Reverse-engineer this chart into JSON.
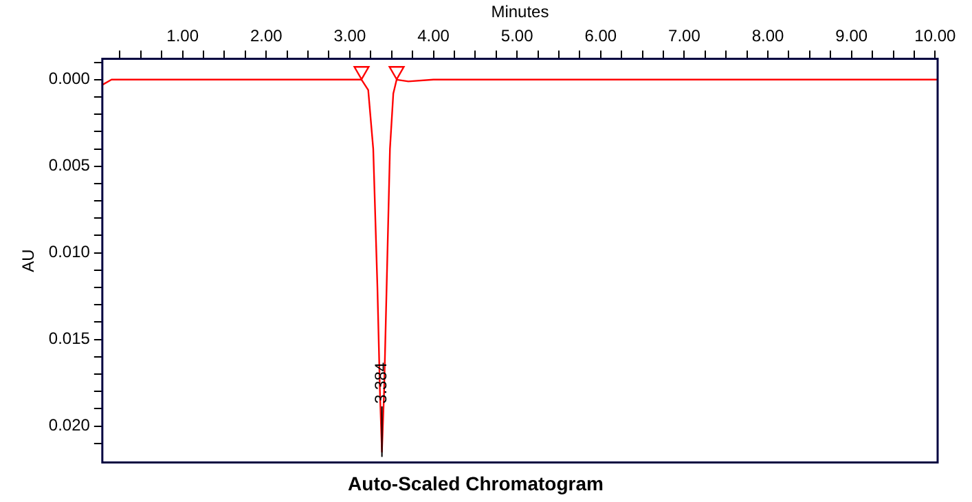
{
  "chart_data": {
    "type": "line",
    "title": "Auto-Scaled Chromatogram",
    "xlabel": "Minutes",
    "ylabel": "AU",
    "xlim": [
      0.04,
      10.03
    ],
    "ylim": [
      0.0221,
      -0.0012
    ],
    "xticks": [
      {
        "value": 0.25,
        "label": null
      },
      {
        "value": 0.5,
        "label": null
      },
      {
        "value": 0.75,
        "label": null
      },
      {
        "value": 1,
        "label": "1.00"
      },
      {
        "value": 1.25,
        "label": null
      },
      {
        "value": 1.5,
        "label": null
      },
      {
        "value": 1.75,
        "label": null
      },
      {
        "value": 2,
        "label": "2.00"
      },
      {
        "value": 2.25,
        "label": null
      },
      {
        "value": 2.5,
        "label": null
      },
      {
        "value": 2.75,
        "label": null
      },
      {
        "value": 3,
        "label": "3.00"
      },
      {
        "value": 3.25,
        "label": null
      },
      {
        "value": 3.5,
        "label": null
      },
      {
        "value": 3.75,
        "label": null
      },
      {
        "value": 4,
        "label": "4.00"
      },
      {
        "value": 4.25,
        "label": null
      },
      {
        "value": 4.5,
        "label": null
      },
      {
        "value": 4.75,
        "label": null
      },
      {
        "value": 5,
        "label": "5.00"
      },
      {
        "value": 5.25,
        "label": null
      },
      {
        "value": 5.5,
        "label": null
      },
      {
        "value": 5.75,
        "label": null
      },
      {
        "value": 6,
        "label": "6.00"
      },
      {
        "value": 6.25,
        "label": null
      },
      {
        "value": 6.5,
        "label": null
      },
      {
        "value": 6.75,
        "label": null
      },
      {
        "value": 7,
        "label": "7.00"
      },
      {
        "value": 7.25,
        "label": null
      },
      {
        "value": 7.5,
        "label": null
      },
      {
        "value": 7.75,
        "label": null
      },
      {
        "value": 8,
        "label": "8.00"
      },
      {
        "value": 8.25,
        "label": null
      },
      {
        "value": 8.5,
        "label": null
      },
      {
        "value": 8.75,
        "label": null
      },
      {
        "value": 9,
        "label": "9.00"
      },
      {
        "value": 9.25,
        "label": null
      },
      {
        "value": 9.5,
        "label": null
      },
      {
        "value": 9.75,
        "label": null
      },
      {
        "value": 10,
        "label": "10.00"
      }
    ],
    "yticks": [
      {
        "value": -0.001,
        "label": null
      },
      {
        "value": 0,
        "label": "0.000"
      },
      {
        "value": 0.001,
        "label": null
      },
      {
        "value": 0.002,
        "label": null
      },
      {
        "value": 0.003,
        "label": null
      },
      {
        "value": 0.004,
        "label": null
      },
      {
        "value": 0.005,
        "label": "0.005"
      },
      {
        "value": 0.006,
        "label": null
      },
      {
        "value": 0.007,
        "label": null
      },
      {
        "value": 0.008,
        "label": null
      },
      {
        "value": 0.009,
        "label": null
      },
      {
        "value": 0.01,
        "label": "0.010"
      },
      {
        "value": 0.011,
        "label": null
      },
      {
        "value": 0.012,
        "label": null
      },
      {
        "value": 0.013,
        "label": null
      },
      {
        "value": 0.014,
        "label": null
      },
      {
        "value": 0.015,
        "label": "0.015"
      },
      {
        "value": 0.016,
        "label": null
      },
      {
        "value": 0.017,
        "label": null
      },
      {
        "value": 0.018,
        "label": null
      },
      {
        "value": 0.019,
        "label": null
      },
      {
        "value": 0.02,
        "label": "0.020"
      },
      {
        "value": 0.021,
        "label": null
      }
    ],
    "grid": false,
    "legend": false,
    "marker": "none",
    "line_style": "solid",
    "series": [
      {
        "color": "#ff0000",
        "x": [
          0.04,
          0.15,
          1,
          2,
          3,
          3.14,
          3.22,
          3.28,
          3.33,
          3.36,
          3.384,
          3.41,
          3.44,
          3.48,
          3.52,
          3.56,
          3.7,
          4,
          5,
          6,
          7,
          8,
          9,
          10.03
        ],
        "values": [
          0.0003,
          0,
          0,
          0,
          0,
          0,
          0.0006,
          0.004,
          0.012,
          0.018,
          0.0215,
          0.018,
          0.012,
          0.004,
          0.0008,
          0,
          0.0001,
          0,
          0,
          0,
          0,
          0,
          0,
          0
        ]
      },
      {
        "type": "scatter",
        "marker": "triangle",
        "color": "#ff0000",
        "x": [
          3.14,
          3.56
        ],
        "values": [
          -0.0005,
          -0.0005
        ]
      }
    ],
    "annotations": [
      {
        "text": "3.384",
        "x": 3.384,
        "y": 0.0195
      }
    ]
  }
}
